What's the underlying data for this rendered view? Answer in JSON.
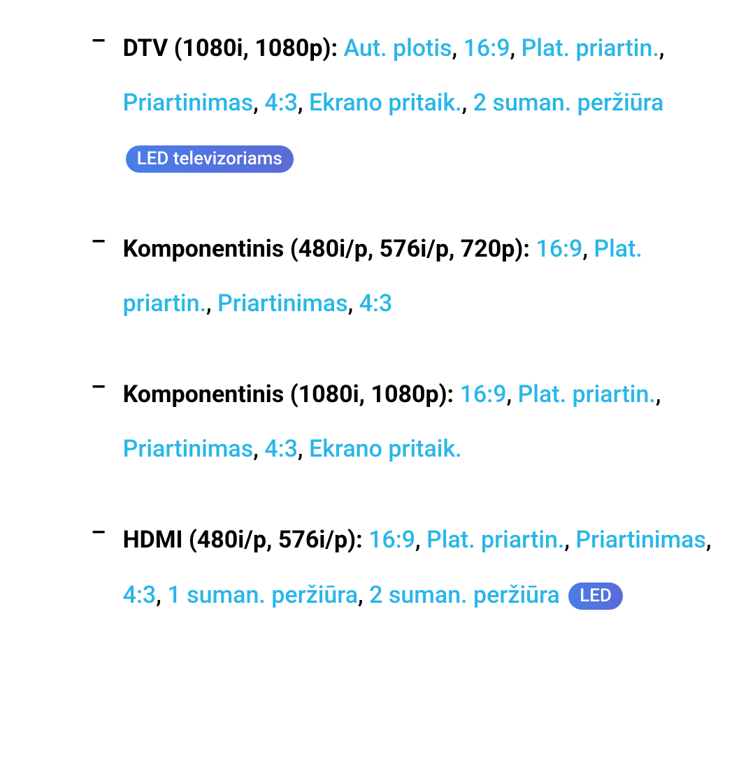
{
  "colors": {
    "text": "#000000",
    "link": "#29b6e8",
    "badge_bg_start": "#4a7de8",
    "badge_bg_end": "#5a6bd8",
    "badge_text": "#ffffff",
    "background": "#ffffff"
  },
  "typography": {
    "body_fontsize": 34,
    "badge_fontsize": 26,
    "line_height": 2.3,
    "bold_weight": 700,
    "link_weight": 500
  },
  "items": [
    {
      "heading": "DTV (1080i, 1080p): ",
      "options": [
        "Aut. plotis",
        "16:9",
        "Plat. priartin.",
        "Priartinimas",
        "4:3",
        "Ekrano pritaik.",
        "2 suman. peržiūra"
      ],
      "badge": "LED televizoriams"
    },
    {
      "heading": "Komponentinis (480i/p, 576i/p, 720p): ",
      "options": [
        "16:9",
        "Plat. priartin.",
        "Priartinimas",
        "4:3"
      ],
      "badge": null
    },
    {
      "heading": "Komponentinis (1080i, 1080p): ",
      "options": [
        "16:9",
        "Plat. priartin.",
        "Priartinimas",
        "4:3",
        "Ekrano pritaik."
      ],
      "badge": null
    },
    {
      "heading": "HDMI (480i/p, 576i/p): ",
      "options": [
        "16:9",
        "Plat. priartin.",
        "Priartinimas",
        "4:3",
        "1 suman. peržiūra",
        "2 suman. peržiūra"
      ],
      "badge": "LED"
    }
  ],
  "dash": "–",
  "separator": ", "
}
